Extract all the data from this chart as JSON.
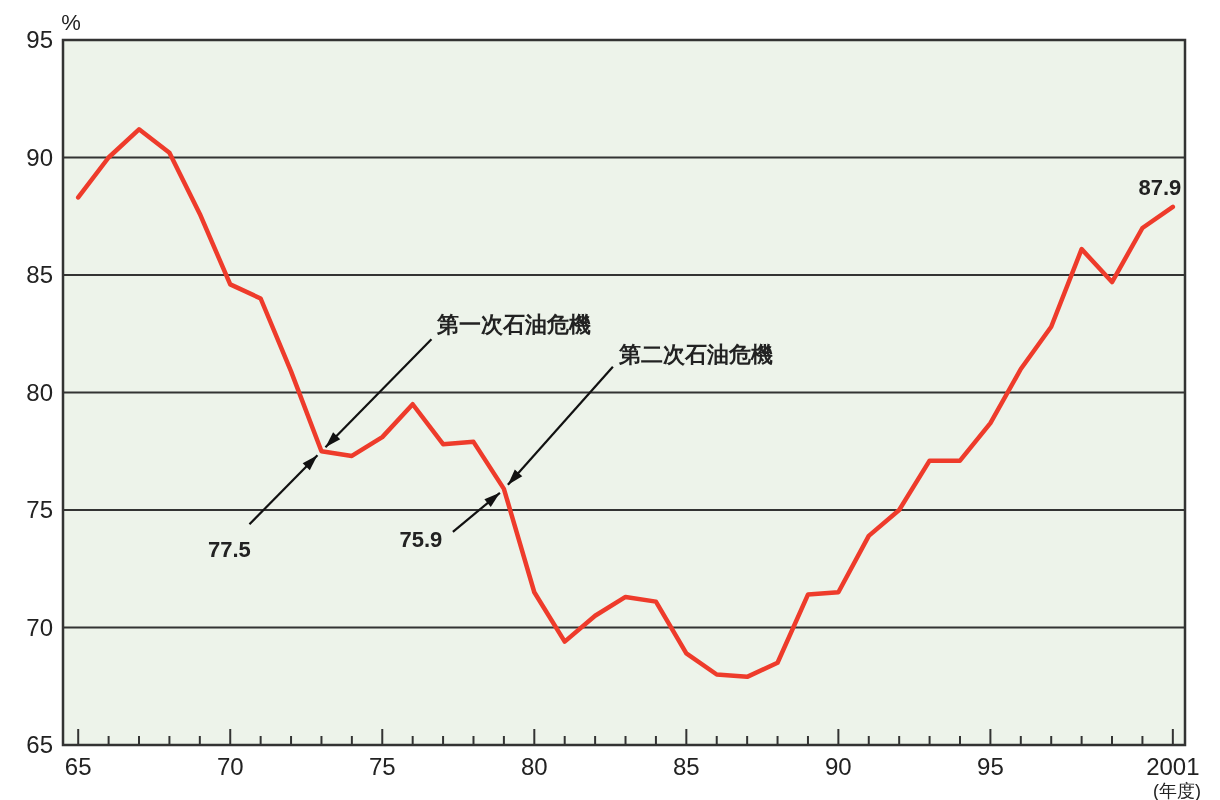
{
  "chart_data": {
    "type": "line",
    "xlabel": "(年度)",
    "ylabel": "%",
    "x": [
      1965,
      1966,
      1967,
      1968,
      1969,
      1970,
      1971,
      1972,
      1973,
      1974,
      1975,
      1976,
      1977,
      1978,
      1979,
      1980,
      1981,
      1982,
      1983,
      1984,
      1985,
      1986,
      1987,
      1988,
      1989,
      1990,
      1991,
      1992,
      1993,
      1994,
      1995,
      1996,
      1997,
      1998,
      1999,
      2000,
      2001
    ],
    "series": [
      {
        "color": "#ee3b2b",
        "values": [
          88.3,
          90.0,
          91.2,
          90.2,
          87.6,
          84.6,
          84.0,
          80.9,
          77.5,
          77.3,
          78.1,
          79.5,
          77.8,
          77.9,
          75.9,
          71.5,
          69.4,
          70.5,
          71.3,
          71.1,
          68.9,
          68.0,
          67.9,
          68.5,
          71.4,
          71.5,
          73.9,
          75.0,
          77.1,
          77.1,
          78.7,
          81.0,
          82.8,
          86.1,
          84.7,
          87.0,
          87.9
        ]
      }
    ],
    "xlim": [
      1964.5,
      2001.4
    ],
    "ylim": [
      65,
      95
    ],
    "xticks": [
      {
        "value": 1965,
        "label": "65"
      },
      {
        "value": 1966,
        "label": null
      },
      {
        "value": 1967,
        "label": null
      },
      {
        "value": 1968,
        "label": null
      },
      {
        "value": 1969,
        "label": null
      },
      {
        "value": 1970,
        "label": "70"
      },
      {
        "value": 1971,
        "label": null
      },
      {
        "value": 1972,
        "label": null
      },
      {
        "value": 1973,
        "label": null
      },
      {
        "value": 1974,
        "label": null
      },
      {
        "value": 1975,
        "label": "75"
      },
      {
        "value": 1976,
        "label": null
      },
      {
        "value": 1977,
        "label": null
      },
      {
        "value": 1978,
        "label": null
      },
      {
        "value": 1979,
        "label": null
      },
      {
        "value": 1980,
        "label": "80"
      },
      {
        "value": 1981,
        "label": null
      },
      {
        "value": 1982,
        "label": null
      },
      {
        "value": 1983,
        "label": null
      },
      {
        "value": 1984,
        "label": null
      },
      {
        "value": 1985,
        "label": "85"
      },
      {
        "value": 1986,
        "label": null
      },
      {
        "value": 1987,
        "label": null
      },
      {
        "value": 1988,
        "label": null
      },
      {
        "value": 1989,
        "label": null
      },
      {
        "value": 1990,
        "label": "90"
      },
      {
        "value": 1991,
        "label": null
      },
      {
        "value": 1992,
        "label": null
      },
      {
        "value": 1993,
        "label": null
      },
      {
        "value": 1994,
        "label": null
      },
      {
        "value": 1995,
        "label": "95"
      },
      {
        "value": 1996,
        "label": null
      },
      {
        "value": 1997,
        "label": null
      },
      {
        "value": 1998,
        "label": null
      },
      {
        "value": 1999,
        "label": null
      },
      {
        "value": 2000,
        "label": null
      },
      {
        "value": 2001,
        "label": "2001"
      }
    ],
    "yticks": [
      65,
      70,
      75,
      80,
      85,
      90,
      95
    ],
    "grid": "y",
    "marker": "none",
    "line_style": "solid",
    "annotations": [
      {
        "text": "第一次石油危機",
        "x": 1973,
        "y": 77.5
      },
      {
        "text": "77.5",
        "x": 1973,
        "y": 77.5
      },
      {
        "text": "第二次石油危機",
        "x": 1979,
        "y": 75.9
      },
      {
        "text": "75.9",
        "x": 1979,
        "y": 75.9
      },
      {
        "text": "87.9",
        "x": 2001,
        "y": 87.9
      }
    ]
  }
}
